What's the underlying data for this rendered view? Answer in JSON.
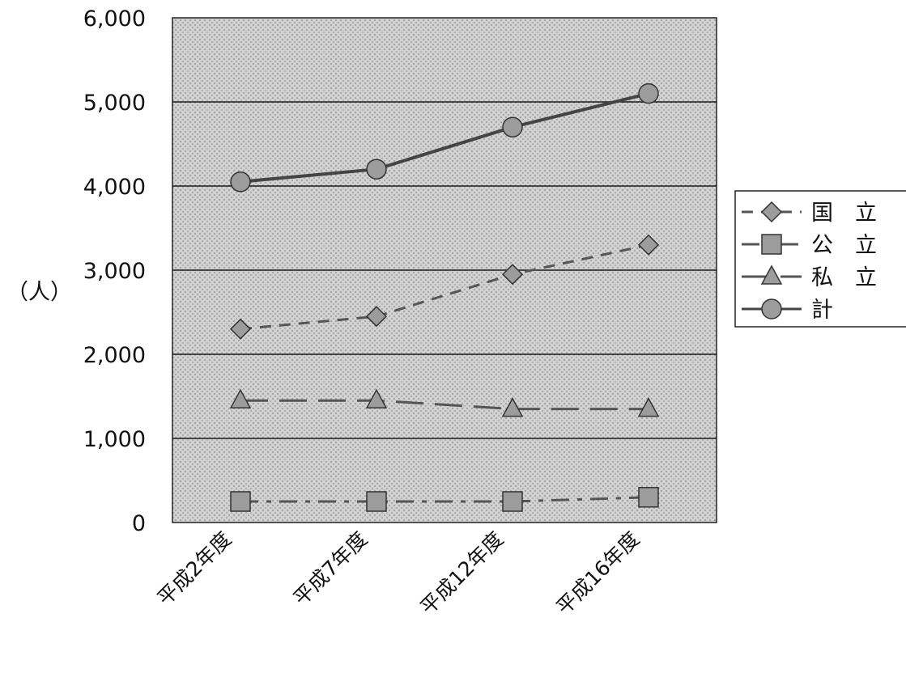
{
  "chart_data": {
    "type": "line",
    "title": "",
    "xlabel": "",
    "ylabel": "（人）",
    "categories": [
      "平成2年度",
      "平成7年度",
      "平成12年度",
      "平成16年度"
    ],
    "ylim": [
      0,
      6000
    ],
    "yticks": [
      "0",
      "1,000",
      "2,000",
      "3,000",
      "4,000",
      "5,000",
      "6,000"
    ],
    "grid": true,
    "legend_position": "right",
    "series": [
      {
        "name": "国　立",
        "values": [
          2300,
          2450,
          2950,
          3300
        ],
        "marker": "diamond",
        "line_style": "dashed",
        "color": "#555555"
      },
      {
        "name": "公　立",
        "values": [
          250,
          250,
          250,
          300
        ],
        "marker": "square",
        "line_style": "dash-dot",
        "color": "#555555"
      },
      {
        "name": "私　立",
        "values": [
          1450,
          1450,
          1350,
          1350
        ],
        "marker": "triangle",
        "line_style": "long-dash",
        "color": "#555555"
      },
      {
        "name": "計",
        "values": [
          4050,
          4200,
          4700,
          5100
        ],
        "marker": "circle",
        "line_style": "solid",
        "color": "#444444"
      }
    ]
  }
}
